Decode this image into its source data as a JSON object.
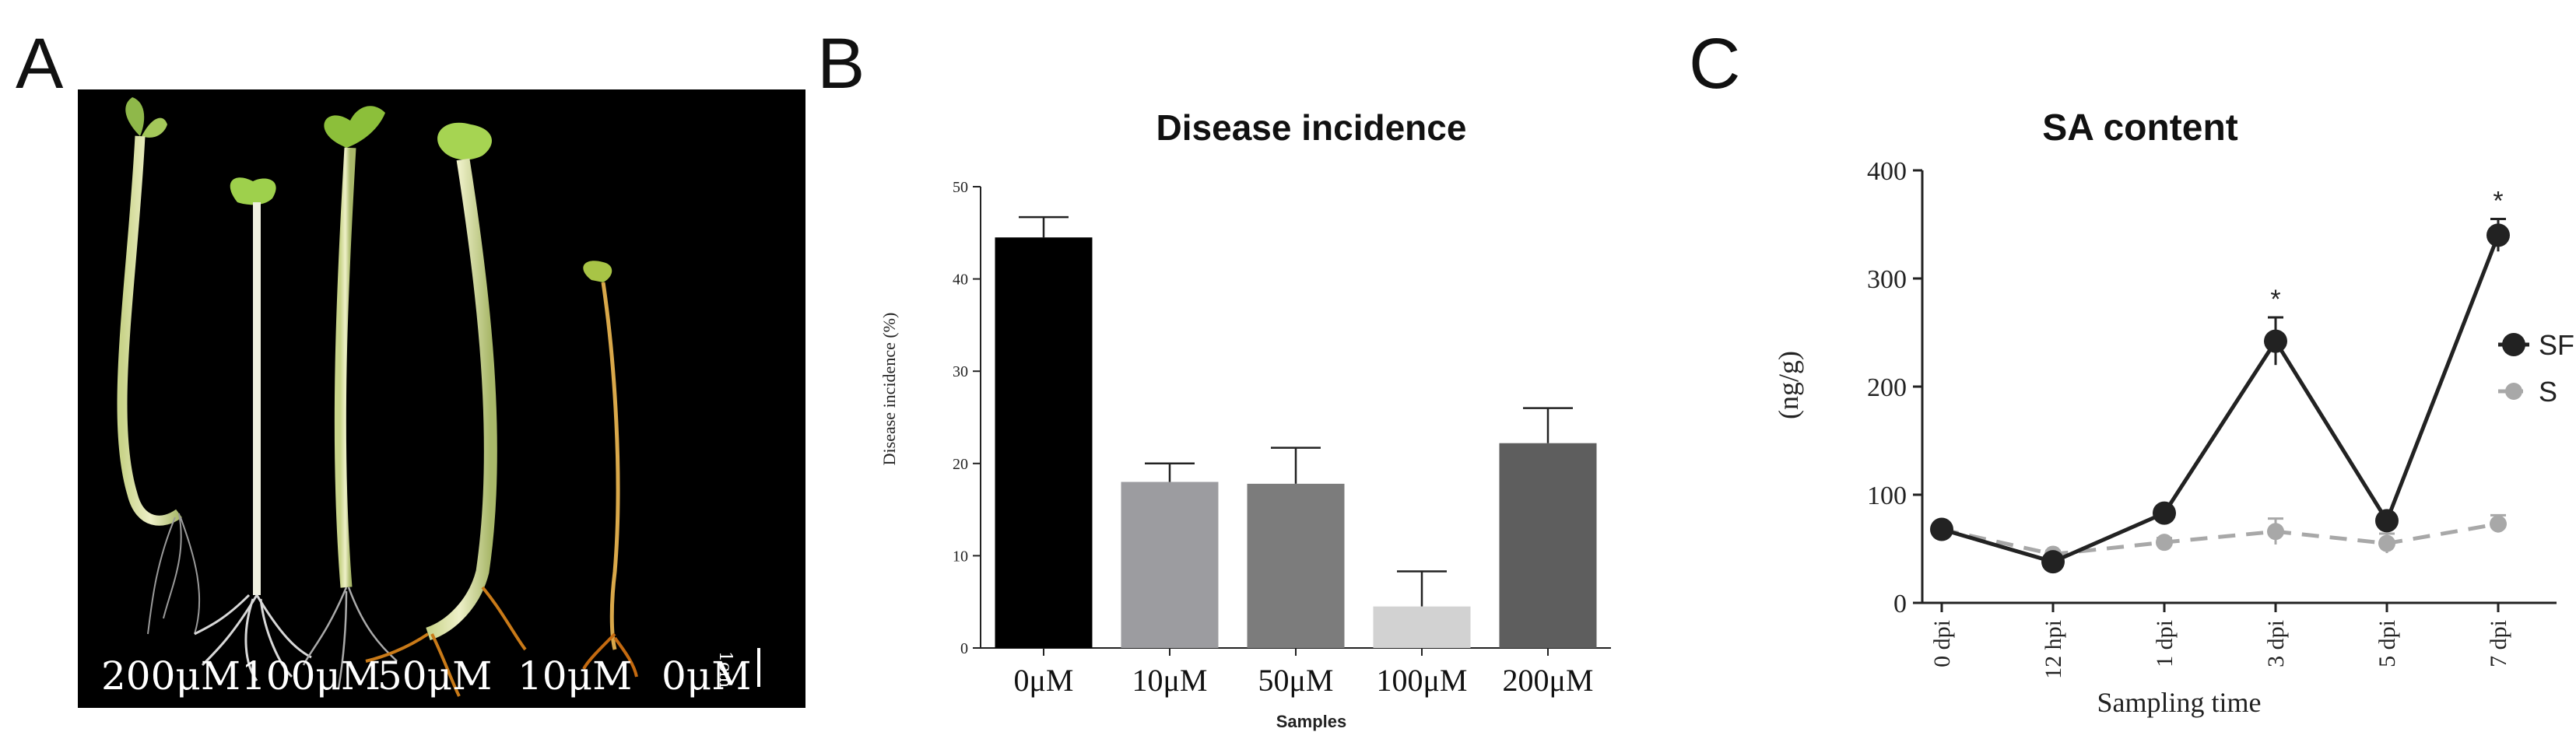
{
  "panel_letters": {
    "a": "A",
    "b": "B",
    "c": "C"
  },
  "photo": {
    "labels": [
      "200μM",
      "100μM",
      "50μM",
      "10μM",
      "0μM"
    ],
    "scale_label": "1cm"
  },
  "chart_data": [
    {
      "type": "bar",
      "title": "Disease incidence",
      "xlabel": "Samples",
      "ylabel": "Disease incidence (%)",
      "categories": [
        "0μM",
        "10μM",
        "50μM",
        "100μM",
        "200μM"
      ],
      "values": [
        44.5,
        18,
        17.8,
        4.5,
        22.2
      ],
      "errors": [
        2.2,
        2.0,
        3.9,
        3.8,
        3.8
      ],
      "colors": [
        "#000000",
        "#9c9ca0",
        "#7c7c7c",
        "#d2d2d2",
        "#5e5e5e"
      ],
      "ylim": [
        0,
        50
      ],
      "yticks": [
        "0",
        "10",
        "20",
        "30",
        "40",
        "50"
      ]
    },
    {
      "type": "line",
      "title": "SA content",
      "xlabel": "Sampling time",
      "ylabel": "(ng/g)",
      "x": [
        "0 dpi",
        "12 hpi",
        "1 dpi",
        "3 dpi",
        "5 dpi",
        "7 dpi"
      ],
      "ylim": [
        0,
        400
      ],
      "yticks": [
        "0",
        "100",
        "200",
        "300",
        "400"
      ],
      "series": [
        {
          "name": "SF",
          "values": [
            68,
            38,
            83,
            242,
            76,
            340
          ],
          "errors": [
            4,
            3,
            4,
            22,
            5,
            15
          ],
          "color": "#222222",
          "dashed": false
        },
        {
          "name": "S",
          "values": [
            68,
            45,
            56,
            66,
            55,
            73
          ],
          "errors": [
            4,
            3,
            4,
            12,
            9,
            8
          ],
          "color": "#a8a8a8",
          "dashed": true
        }
      ],
      "annotations": [
        {
          "x": "3 dpi",
          "text": "*"
        },
        {
          "x": "7 dpi",
          "text": "*"
        }
      ]
    }
  ]
}
